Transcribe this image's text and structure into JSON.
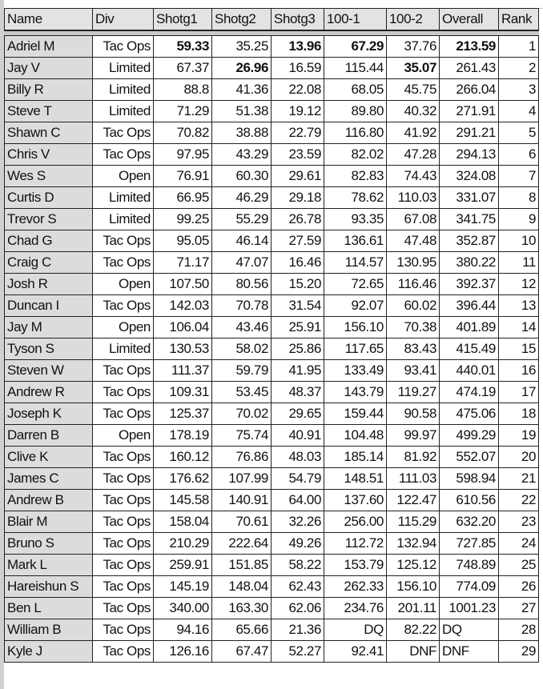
{
  "headers": [
    "Name",
    "Div",
    "Shotg1",
    "Shotg2",
    "Shotg3",
    "100-1",
    "100-2",
    "Overall",
    "Rank"
  ],
  "rows": [
    {
      "cells": [
        "Adriel M",
        "Tac Ops",
        "59.33",
        "35.25",
        "13.96",
        "67.29",
        "37.76",
        "213.59",
        "1"
      ],
      "bold": [
        2,
        4,
        5,
        7
      ]
    },
    {
      "cells": [
        "Jay V",
        "Limited",
        "67.37",
        "26.96",
        "16.59",
        "115.44",
        "35.07",
        "261.43",
        "2"
      ],
      "bold": [
        3,
        6
      ]
    },
    {
      "cells": [
        "Billy R",
        "Limited",
        "88.8",
        "41.36",
        "22.08",
        "68.05",
        "45.75",
        "266.04",
        "3"
      ]
    },
    {
      "cells": [
        "Steve T",
        "Limited",
        "71.29",
        "51.38",
        "19.12",
        "89.80",
        "40.32",
        "271.91",
        "4"
      ]
    },
    {
      "cells": [
        "Shawn C",
        "Tac Ops",
        "70.82",
        "38.88",
        "22.79",
        "116.80",
        "41.92",
        "291.21",
        "5"
      ]
    },
    {
      "cells": [
        "Chris V",
        "Tac Ops",
        "97.95",
        "43.29",
        "23.59",
        "82.02",
        "47.28",
        "294.13",
        "6"
      ]
    },
    {
      "cells": [
        "Wes S",
        "Open",
        "76.91",
        "60.30",
        "29.61",
        "82.83",
        "74.43",
        "324.08",
        "7"
      ]
    },
    {
      "cells": [
        "Curtis D",
        "Limited",
        "66.95",
        "46.29",
        "29.18",
        "78.62",
        "110.03",
        "331.07",
        "8"
      ]
    },
    {
      "cells": [
        "Trevor S",
        "Limited",
        "99.25",
        "55.29",
        "26.78",
        "93.35",
        "67.08",
        "341.75",
        "9"
      ]
    },
    {
      "cells": [
        "Chad G",
        "Tac Ops",
        "95.05",
        "46.14",
        "27.59",
        "136.61",
        "47.48",
        "352.87",
        "10"
      ]
    },
    {
      "cells": [
        "Craig C",
        "Tac Ops",
        "71.17",
        "47.07",
        "16.46",
        "114.57",
        "130.95",
        "380.22",
        "11"
      ]
    },
    {
      "cells": [
        "Josh R",
        "Open",
        "107.50",
        "80.56",
        "15.20",
        "72.65",
        "116.46",
        "392.37",
        "12"
      ]
    },
    {
      "cells": [
        "Duncan I",
        "Tac Ops",
        "142.03",
        "70.78",
        "31.54",
        "92.07",
        "60.02",
        "396.44",
        "13"
      ]
    },
    {
      "cells": [
        "Jay M",
        "Open",
        "106.04",
        "43.46",
        "25.91",
        "156.10",
        "70.38",
        "401.89",
        "14"
      ]
    },
    {
      "cells": [
        "Tyson S",
        "Limited",
        "130.53",
        "58.02",
        "25.86",
        "117.65",
        "83.43",
        "415.49",
        "15"
      ]
    },
    {
      "cells": [
        "Steven W",
        "Tac Ops",
        "111.37",
        "59.79",
        "41.95",
        "133.49",
        "93.41",
        "440.01",
        "16"
      ]
    },
    {
      "cells": [
        "Andrew R",
        "Tac Ops",
        "109.31",
        "53.45",
        "48.37",
        "143.79",
        "119.27",
        "474.19",
        "17"
      ]
    },
    {
      "cells": [
        "Joseph K",
        "Tac Ops",
        "125.37",
        "70.02",
        "29.65",
        "159.44",
        "90.58",
        "475.06",
        "18"
      ]
    },
    {
      "cells": [
        "Darren B",
        "Open",
        "178.19",
        "75.74",
        "40.91",
        "104.48",
        "99.97",
        "499.29",
        "19"
      ]
    },
    {
      "cells": [
        "Clive K",
        "Tac Ops",
        "160.12",
        "76.86",
        "48.03",
        "185.14",
        "81.92",
        "552.07",
        "20"
      ]
    },
    {
      "cells": [
        "James C",
        "Tac Ops",
        "176.62",
        "107.99",
        "54.79",
        "148.51",
        "111.03",
        "598.94",
        "21"
      ]
    },
    {
      "cells": [
        "Andrew B",
        "Tac Ops",
        "145.58",
        "140.91",
        "64.00",
        "137.60",
        "122.47",
        "610.56",
        "22"
      ]
    },
    {
      "cells": [
        "Blair M",
        "Tac Ops",
        "158.04",
        "70.61",
        "32.26",
        "256.00",
        "115.29",
        "632.20",
        "23"
      ]
    },
    {
      "cells": [
        "Bruno S",
        "Tac Ops",
        "210.29",
        "222.64",
        "49.26",
        "112.72",
        "132.94",
        "727.85",
        "24"
      ]
    },
    {
      "cells": [
        "Mark L",
        "Tac Ops",
        "259.91",
        "151.85",
        "58.22",
        "153.79",
        "125.12",
        "748.89",
        "25"
      ]
    },
    {
      "cells": [
        "Hareishun S",
        "Tac Ops",
        "145.19",
        "148.04",
        "62.43",
        "262.33",
        "156.10",
        "774.09",
        "26"
      ]
    },
    {
      "cells": [
        "Ben L",
        "Tac Ops",
        "340.00",
        "163.30",
        "62.06",
        "234.76",
        "201.11",
        "1001.23",
        "27"
      ]
    },
    {
      "cells": [
        "William B",
        "Tac Ops",
        "94.16",
        "65.66",
        "21.36",
        "DQ",
        "82.22",
        "DQ",
        "28"
      ],
      "left": [
        7
      ]
    },
    {
      "cells": [
        "Kyle J",
        "Tac Ops",
        "126.16",
        "67.47",
        "52.27",
        "92.41",
        "DNF",
        "DNF",
        "29"
      ],
      "left": [
        7
      ]
    }
  ]
}
